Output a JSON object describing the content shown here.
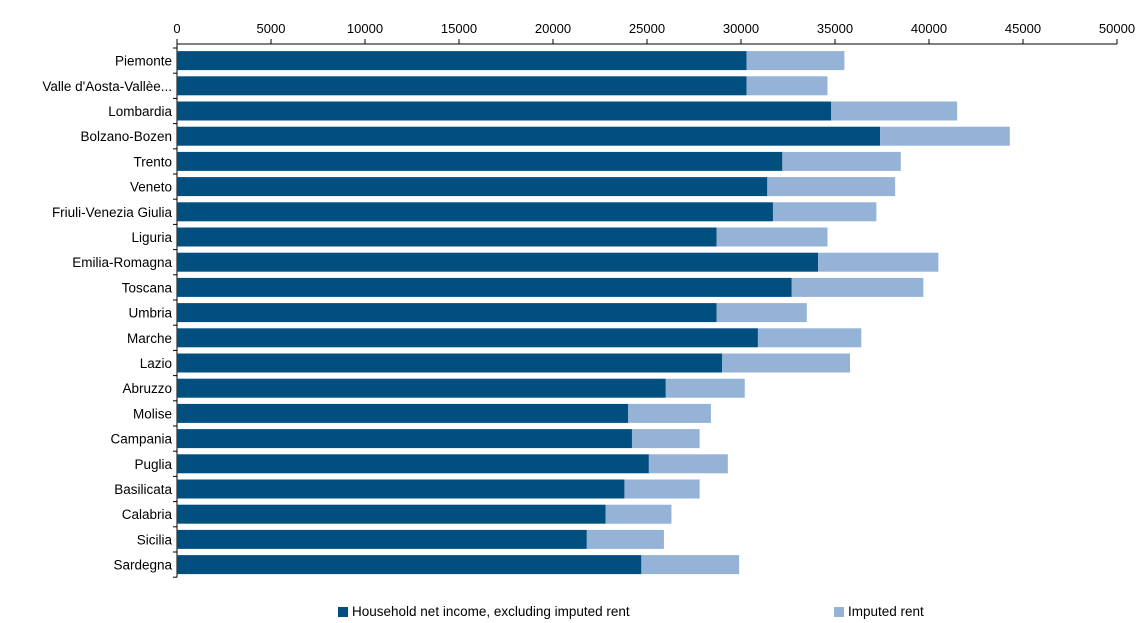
{
  "chart_data": {
    "type": "bar",
    "orientation": "horizontal",
    "stacked": true,
    "title": "",
    "xlabel": "",
    "ylabel": "",
    "xlim": [
      0,
      50000
    ],
    "xticks": [
      0,
      5000,
      10000,
      15000,
      20000,
      25000,
      30000,
      35000,
      40000,
      45000,
      50000
    ],
    "xaxis_position": "top",
    "grid": false,
    "legend_position": "bottom",
    "categories": [
      "Piemonte",
      "Valle d'Aosta-Vallèe...",
      "Lombardia",
      "Bolzano-Bozen",
      "Trento",
      "Veneto",
      "Friuli-Venezia Giulia",
      "Liguria",
      "Emilia-Romagna",
      "Toscana",
      "Umbria",
      "Marche",
      "Lazio",
      "Abruzzo",
      "Molise",
      "Campania",
      "Puglia",
      "Basilicata",
      "Calabria",
      "Sicilia",
      "Sardegna"
    ],
    "series": [
      {
        "name": "Household net income, excluding imputed rent",
        "color": "#004f7f",
        "values": [
          30300,
          30300,
          34800,
          37400,
          32200,
          31400,
          31700,
          28700,
          34100,
          32700,
          28700,
          30900,
          29000,
          26000,
          24000,
          24200,
          25100,
          23800,
          22800,
          21800,
          24700
        ]
      },
      {
        "name": "Imputed rent",
        "color": "#95b3d7",
        "values": [
          5200,
          4300,
          6700,
          6900,
          6300,
          6800,
          5500,
          5900,
          6400,
          7000,
          4800,
          5500,
          6800,
          4200,
          4400,
          3600,
          4200,
          4000,
          3500,
          4100,
          5200
        ]
      }
    ]
  }
}
